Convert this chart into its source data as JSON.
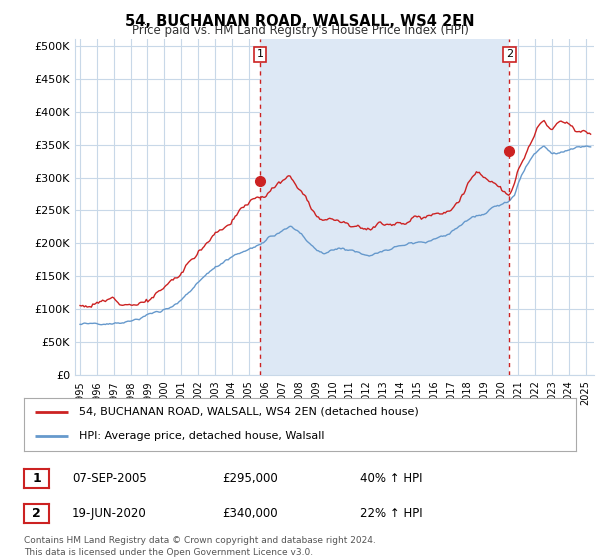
{
  "title": "54, BUCHANAN ROAD, WALSALL, WS4 2EN",
  "subtitle": "Price paid vs. HM Land Registry's House Price Index (HPI)",
  "ylabel_ticks": [
    "£0",
    "£50K",
    "£100K",
    "£150K",
    "£200K",
    "£250K",
    "£300K",
    "£350K",
    "£400K",
    "£450K",
    "£500K"
  ],
  "ytick_values": [
    0,
    50000,
    100000,
    150000,
    200000,
    250000,
    300000,
    350000,
    400000,
    450000,
    500000
  ],
  "ylim": [
    0,
    510000
  ],
  "xlim_start": 1994.7,
  "xlim_end": 2025.5,
  "background_color": "#ffffff",
  "plot_bg_color": "#ffffff",
  "grid_color": "#c8d8e8",
  "shade_color": "#dde8f5",
  "red_line_color": "#cc2222",
  "blue_line_color": "#6699cc",
  "marker1_x": 2005.69,
  "marker1_y": 295000,
  "marker2_x": 2020.47,
  "marker2_y": 340000,
  "vline1_x": 2005.69,
  "vline2_x": 2020.47,
  "legend_line1": "54, BUCHANAN ROAD, WALSALL, WS4 2EN (detached house)",
  "legend_line2": "HPI: Average price, detached house, Walsall",
  "table_row1": [
    "1",
    "07-SEP-2005",
    "£295,000",
    "40% ↑ HPI"
  ],
  "table_row2": [
    "2",
    "19-JUN-2020",
    "£340,000",
    "22% ↑ HPI"
  ],
  "footer": "Contains HM Land Registry data © Crown copyright and database right 2024.\nThis data is licensed under the Open Government Licence v3.0.",
  "xtick_years": [
    1995,
    1996,
    1997,
    1998,
    1999,
    2000,
    2001,
    2002,
    2003,
    2004,
    2005,
    2006,
    2007,
    2008,
    2009,
    2010,
    2011,
    2012,
    2013,
    2014,
    2015,
    2016,
    2017,
    2018,
    2019,
    2020,
    2021,
    2022,
    2023,
    2024,
    2025
  ]
}
